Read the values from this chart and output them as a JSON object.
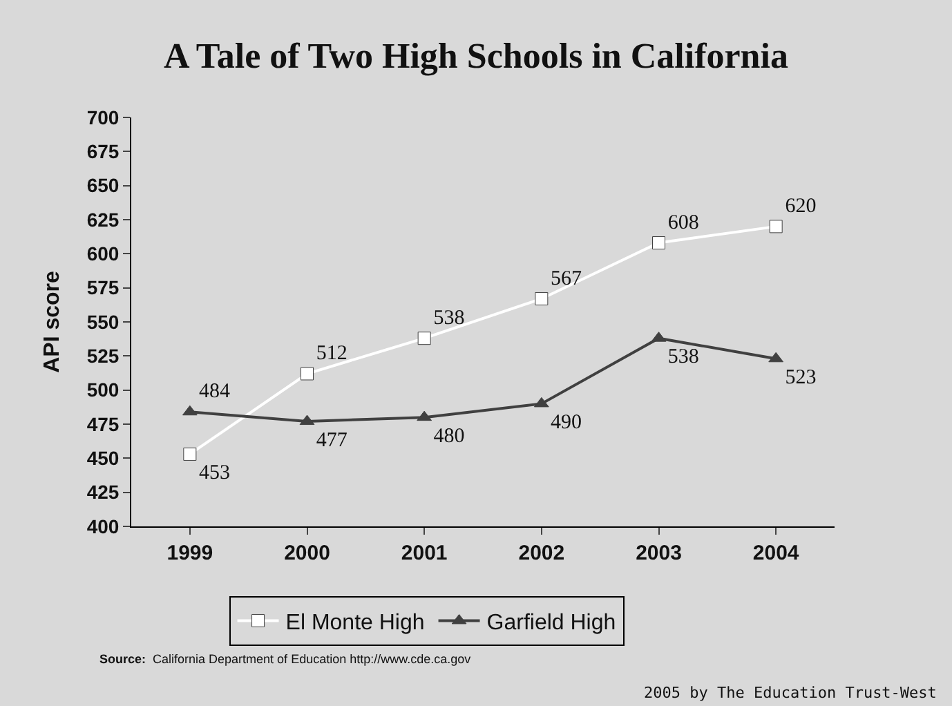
{
  "chart_data": {
    "type": "line",
    "title": "A Tale of Two High Schools in California",
    "ylabel": "API score",
    "categories": [
      "1999",
      "2000",
      "2001",
      "2002",
      "2003",
      "2004"
    ],
    "series": [
      {
        "name": "El Monte High",
        "color": "#ffffff",
        "marker": "square",
        "values": [
          453,
          512,
          538,
          567,
          608,
          620
        ]
      },
      {
        "name": "Garfield High",
        "color": "#404040",
        "marker": "triangle",
        "values": [
          484,
          477,
          480,
          490,
          538,
          523
        ]
      }
    ],
    "ylim": [
      400,
      700
    ],
    "yticks": [
      400,
      425,
      450,
      475,
      500,
      525,
      550,
      575,
      600,
      625,
      650,
      675,
      700
    ],
    "data_labels": true,
    "grid": false,
    "legend": "bottom",
    "annotations": [
      "Source:  California Department of Education http://www.cde.ca.gov",
      "2005 by The Education Trust-West"
    ]
  }
}
